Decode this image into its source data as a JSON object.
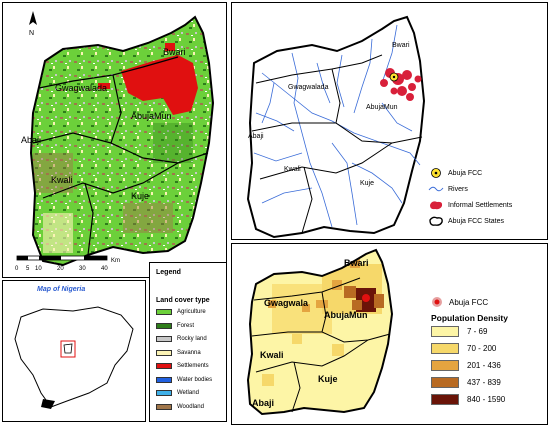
{
  "landcover_map": {
    "north_label": "N",
    "places": [
      "Bwari",
      "Gwagwalada",
      "AbujaMun",
      "Abaji",
      "Kwali",
      "Kuje"
    ]
  },
  "scale_bar": {
    "ticks": [
      "0",
      "5",
      "10",
      "20",
      "30",
      "40"
    ],
    "unit": "Km"
  },
  "inset": {
    "title": "Map of Nigeria"
  },
  "legend": {
    "title": "Legend",
    "subtitle": "Land cover type",
    "items": [
      {
        "label": "Agriculture",
        "color": "#6cd03a"
      },
      {
        "label": "Forest",
        "color": "#2e7d1a"
      },
      {
        "label": "Rocky land",
        "color": "#c8c8c8"
      },
      {
        "label": "Savanna",
        "color": "#fbf3b5"
      },
      {
        "label": "Settlements",
        "color": "#e01010"
      },
      {
        "label": "Water bodies",
        "color": "#2060e0"
      },
      {
        "label": "Wetland",
        "color": "#3fb0e8"
      },
      {
        "label": "Woodland",
        "color": "#a0764a"
      }
    ]
  },
  "rivers_map": {
    "places": [
      "Bwari",
      "Gwagwalada",
      "AbujaMun",
      "Abaji",
      "Kwali",
      "Kuje"
    ],
    "legend": [
      {
        "label": "Abuja FCC",
        "icon": "target-icon"
      },
      {
        "label": "Rivers",
        "icon": "river-line-icon"
      },
      {
        "label": "Informal Settlements",
        "icon": "settlement-blob-icon"
      },
      {
        "label": "Abuja FCC States",
        "icon": "boundary-outline-icon"
      }
    ]
  },
  "density_map": {
    "places": [
      "Bwari",
      "Gwagwala",
      "AbujaMun",
      "Kwali",
      "Kuje",
      "Abaji"
    ],
    "fcc_label": "Abuja FCC",
    "density_title": "Population Density",
    "classes": [
      {
        "label": "7 - 69",
        "color": "#fdf5a6"
      },
      {
        "label": "70 - 200",
        "color": "#f6d86a"
      },
      {
        "label": "201 - 436",
        "color": "#e4a440"
      },
      {
        "label": "437 - 839",
        "color": "#b86a22"
      },
      {
        "label": "840 - 1590",
        "color": "#6a1408"
      }
    ]
  }
}
